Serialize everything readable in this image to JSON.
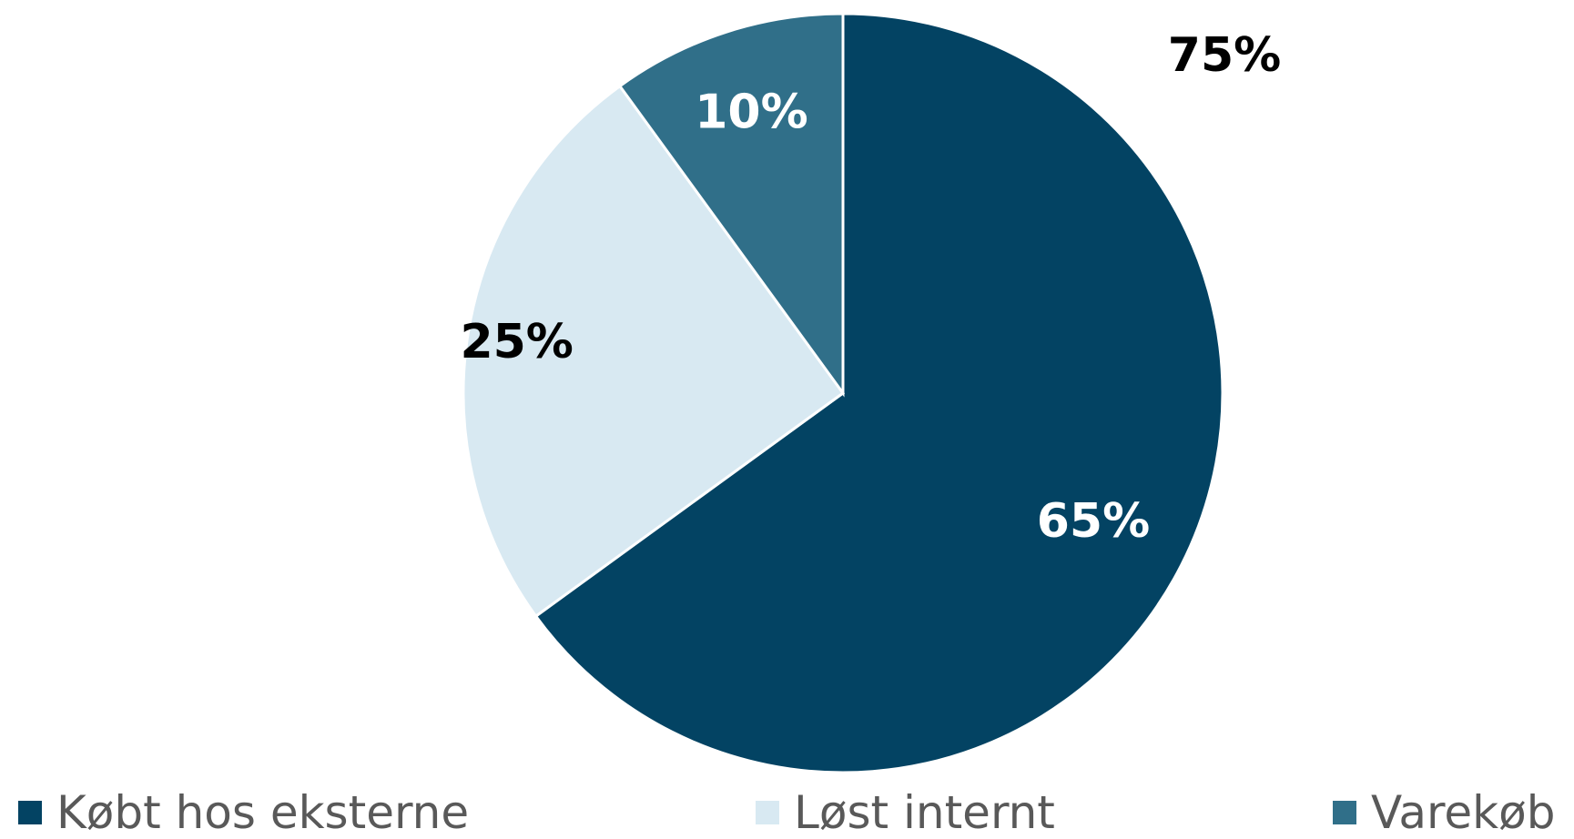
{
  "chart_data": {
    "type": "pie",
    "title": "",
    "slices": [
      {
        "name": "Købt hos eksterne",
        "value": 65,
        "label": "65%",
        "color": "#034363",
        "label_color": "#ffffff"
      },
      {
        "name": "Løst internt",
        "value": 25,
        "label": "25%",
        "color": "#d8e9f2",
        "label_color": "#000000"
      },
      {
        "name": "Varekøb",
        "value": 10,
        "label": "10%",
        "color": "#306f89",
        "label_color": "#ffffff"
      }
    ],
    "annotations": [
      {
        "text": "75%",
        "color": "#000000"
      }
    ],
    "legend_position": "bottom",
    "border_color": "#ffffff"
  }
}
